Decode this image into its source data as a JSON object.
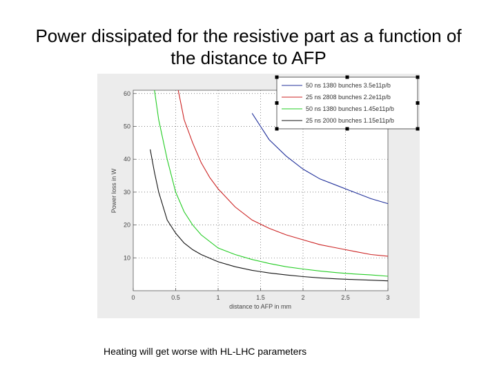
{
  "slide": {
    "title": "Power dissipated for the resistive part as a function of the distance to AFP",
    "caption": "Heating will get worse with HL-LHC parameters"
  },
  "chart_data": {
    "type": "line",
    "title": "",
    "xlabel": "distance to AFP in mm",
    "ylabel": "Power loss in W",
    "xlim": [
      0,
      3
    ],
    "ylim": [
      0,
      61
    ],
    "xticks": [
      0,
      0.5,
      1,
      1.5,
      2,
      2.5,
      3
    ],
    "xtick_labels": [
      "0",
      "0.5",
      "1",
      "1.5",
      "2",
      "2.5",
      "3"
    ],
    "yticks": [
      10,
      20,
      30,
      40,
      50,
      60
    ],
    "ytick_labels": [
      "10",
      "20",
      "30",
      "40",
      "50",
      "60"
    ],
    "grid": true,
    "legend_position": "top-right",
    "series": [
      {
        "name": "50 ns 1380 bunches 3.5e11p/b",
        "color": "#1f2f9a",
        "x": [
          1.4,
          1.6,
          1.8,
          2.0,
          2.2,
          2.4,
          2.6,
          2.8,
          3.0
        ],
        "y": [
          54,
          46,
          41,
          37,
          34,
          32,
          30,
          28,
          26.5
        ]
      },
      {
        "name": "25 ns 2808 bunches 2.2e11p/b",
        "color": "#cc2222",
        "x": [
          0.53,
          0.6,
          0.7,
          0.8,
          0.9,
          1.0,
          1.2,
          1.4,
          1.6,
          1.8,
          2.0,
          2.2,
          2.4,
          2.6,
          2.8,
          3.0
        ],
        "y": [
          61,
          52,
          45,
          39,
          34.5,
          31,
          25.5,
          21.5,
          19,
          17,
          15.5,
          14,
          13,
          12,
          11,
          10.5
        ]
      },
      {
        "name": "50 ns 1380 bunches 1.45e11p/b",
        "color": "#22cc22",
        "x": [
          0.25,
          0.3,
          0.4,
          0.5,
          0.6,
          0.7,
          0.8,
          1.0,
          1.2,
          1.4,
          1.6,
          1.8,
          2.0,
          2.2,
          2.4,
          2.6,
          2.8,
          3.0
        ],
        "y": [
          61,
          52,
          40,
          30,
          24,
          20,
          17,
          13,
          11,
          9.5,
          8.3,
          7.3,
          6.6,
          6.0,
          5.5,
          5.1,
          4.8,
          4.4
        ]
      },
      {
        "name": "25 ns 2000 bunches 1.15e11p/b",
        "color": "#111111",
        "x": [
          0.2,
          0.25,
          0.3,
          0.4,
          0.5,
          0.6,
          0.7,
          0.8,
          1.0,
          1.2,
          1.4,
          1.6,
          1.8,
          2.0,
          2.2,
          2.4,
          2.6,
          2.8,
          3.0
        ],
        "y": [
          43,
          36,
          30,
          21.5,
          17.5,
          14.5,
          12.5,
          11,
          8.8,
          7.3,
          6.2,
          5.4,
          4.8,
          4.3,
          3.9,
          3.6,
          3.4,
          3.2,
          3.0
        ]
      }
    ]
  }
}
